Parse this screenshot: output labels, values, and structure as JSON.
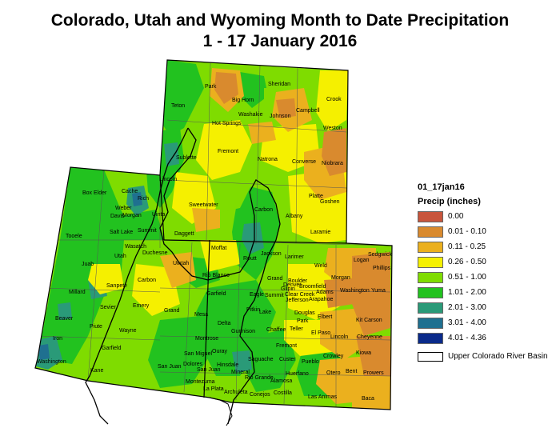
{
  "title": {
    "line1": "Colorado, Utah and Wyoming Month to Date Precipitation",
    "line2": "1 - 17 January 2016"
  },
  "legend": {
    "name": "01_17jan16",
    "heading": "Precip (inches)",
    "classes": [
      {
        "label": "0.00",
        "color": "#c8553c"
      },
      {
        "label": "0.01 - 0.10",
        "color": "#d98a2e"
      },
      {
        "label": "0.11 - 0.25",
        "color": "#ebb01e"
      },
      {
        "label": "0.26 - 0.50",
        "color": "#f5f000"
      },
      {
        "label": "0.51 - 1.00",
        "color": "#7fdc00"
      },
      {
        "label": "1.01 - 2.00",
        "color": "#22c21f"
      },
      {
        "label": "2.01 - 3.00",
        "color": "#2a9a78"
      },
      {
        "label": "3.01 - 4.00",
        "color": "#1f7090"
      },
      {
        "label": "4.01 - 4.36",
        "color": "#0a2a8a"
      }
    ],
    "basin_label": "Upper Colorado River Basin"
  },
  "counties": {
    "wyoming": [
      "Park",
      "Big Horn",
      "Sheridan",
      "Crook",
      "Teton",
      "Washakie",
      "Johnson",
      "Campbell",
      "Hot Springs",
      "Weston",
      "Fremont",
      "Natrona",
      "Converse",
      "Niobrara",
      "Sublette",
      "Lincoln",
      "Sweetwater",
      "Carbon",
      "Albany",
      "Platte",
      "Goshen",
      "Laramie",
      "Uinta"
    ],
    "utah": [
      "Box Elder",
      "Cache",
      "Rich",
      "Weber",
      "Davis",
      "Morgan",
      "Salt Lake",
      "Summit",
      "Daggett",
      "Tooele",
      "Wasatch",
      "Duchesne",
      "Uintah",
      "Utah",
      "Juab",
      "Sanpete",
      "Carbon",
      "Millard",
      "Sevier",
      "Emery",
      "Grand",
      "Beaver",
      "Piute",
      "Wayne",
      "Iron",
      "Garfield",
      "Washington",
      "Kane",
      "San Juan"
    ],
    "colorado": [
      "Moffat",
      "Routt",
      "Jackson",
      "Larimer",
      "Weld",
      "Logan",
      "Sedgwick",
      "Phillips",
      "Morgan",
      "Rio Blanco",
      "Grand",
      "Boulder",
      "Adams",
      "Washington",
      "Yuma",
      "Garfield",
      "Eagle",
      "Summit",
      "Gilpin",
      "Clear Creek",
      "Jefferson",
      "Arapahoe",
      "Denver",
      "Broomfield",
      "Mesa",
      "Pitkin",
      "Lake",
      "Douglas",
      "Elbert",
      "Kit Carson",
      "Delta",
      "Gunnison",
      "Chaffee",
      "Park",
      "Teller",
      "El Paso",
      "Lincoln",
      "Cheyenne",
      "Montrose",
      "Fremont",
      "Ouray",
      "San Miguel",
      "Custer",
      "Pueblo",
      "Kiowa",
      "Crowley",
      "Dolores",
      "San Juan",
      "Hinsdale",
      "Saguache",
      "Otero",
      "Bent",
      "Prowers",
      "Montezuma",
      "La Plata",
      "Mineral",
      "Rio Grande",
      "Alamosa",
      "Huerfano",
      "Archuleta",
      "Conejos",
      "Costilla",
      "Las Animas",
      "Baca"
    ]
  }
}
